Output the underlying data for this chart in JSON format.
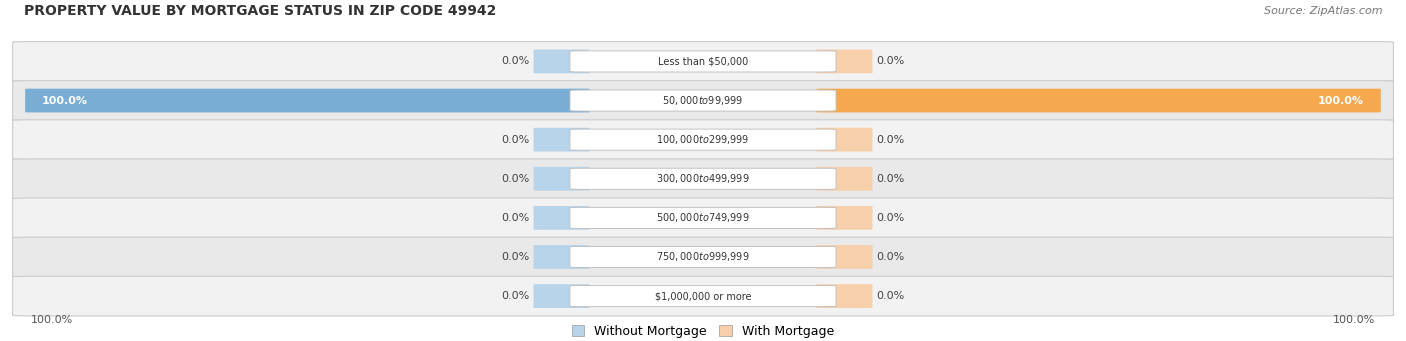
{
  "title": "PROPERTY VALUE BY MORTGAGE STATUS IN ZIP CODE 49942",
  "source": "Source: ZipAtlas.com",
  "categories": [
    "Less than $50,000",
    "$50,000 to $99,999",
    "$100,000 to $299,999",
    "$300,000 to $499,999",
    "$500,000 to $749,999",
    "$750,000 to $999,999",
    "$1,000,000 or more"
  ],
  "without_mortgage": [
    0.0,
    100.0,
    0.0,
    0.0,
    0.0,
    0.0,
    0.0
  ],
  "with_mortgage": [
    0.0,
    100.0,
    0.0,
    0.0,
    0.0,
    0.0,
    0.0
  ],
  "color_without": "#7aadd4",
  "color_without_light": "#b8d4ea",
  "color_with": "#f5a84e",
  "color_with_light": "#f7cfaa",
  "row_bg_odd": "#f2f2f2",
  "row_bg_even": "#e9e9e9",
  "title_fontsize": 10,
  "source_fontsize": 8,
  "label_fontsize": 8,
  "cat_fontsize": 7,
  "legend_fontsize": 9,
  "value_fontsize": 8
}
